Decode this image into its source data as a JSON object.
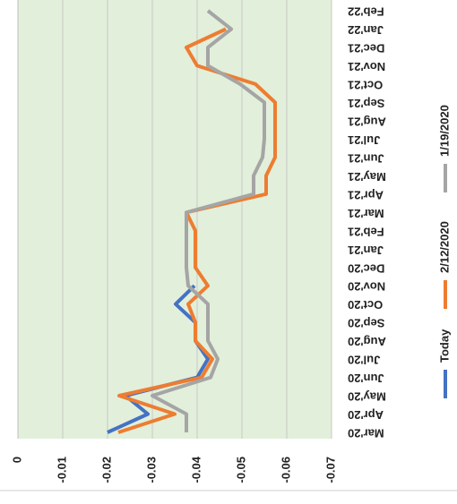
{
  "chart_data": {
    "type": "line",
    "categories": [
      "Mar'20",
      "Apr'20",
      "May'20",
      "Jun'20",
      "Jul'20",
      "Aug'20",
      "Sep'20",
      "Oct'20",
      "Nov'20",
      "Dec'20",
      "Jan'21",
      "Feb'21",
      "Mar'21",
      "Apr'21",
      "May'21",
      "Jun'21",
      "Jul'21",
      "Aug'21",
      "Sep'21",
      "Oct'21",
      "Nov'21",
      "Dec'21",
      "Jan'22",
      "Feb'22"
    ],
    "series": [
      {
        "name": "Today",
        "color": "#4472c4",
        "values": [
          -0.02,
          -0.029,
          -0.024,
          -0.04,
          -0.0424,
          -0.0396,
          -0.0396,
          -0.0352,
          -0.0394,
          null,
          null,
          null,
          null,
          null,
          null,
          null,
          null,
          null,
          null,
          null,
          null,
          null,
          null,
          null
        ]
      },
      {
        "name": "2/12/2020",
        "color": "#ed7d31",
        "values": [
          -0.0224,
          -0.035,
          -0.0226,
          -0.041,
          -0.0434,
          -0.0396,
          -0.0396,
          -0.038,
          -0.0424,
          -0.0396,
          -0.0396,
          -0.0396,
          -0.0376,
          -0.0554,
          -0.0554,
          -0.0574,
          -0.0574,
          -0.0574,
          -0.0574,
          -0.053,
          -0.04,
          -0.0376,
          -0.0464,
          null
        ]
      },
      {
        "name": "1/19/2020",
        "color": "#a5a5a5",
        "values": [
          -0.0376,
          -0.0376,
          -0.03,
          -0.043,
          -0.0446,
          -0.0424,
          -0.0424,
          -0.0424,
          -0.038,
          -0.0376,
          -0.0376,
          -0.0376,
          -0.0376,
          -0.0526,
          -0.0526,
          -0.0546,
          -0.055,
          -0.055,
          -0.055,
          -0.0496,
          -0.0424,
          -0.0424,
          -0.0476,
          -0.0424
        ]
      }
    ],
    "ylim": [
      -0.07,
      0
    ],
    "yticks": [
      0,
      -0.01,
      -0.02,
      -0.03,
      -0.04,
      -0.05,
      -0.06,
      -0.07
    ],
    "grid": true
  }
}
